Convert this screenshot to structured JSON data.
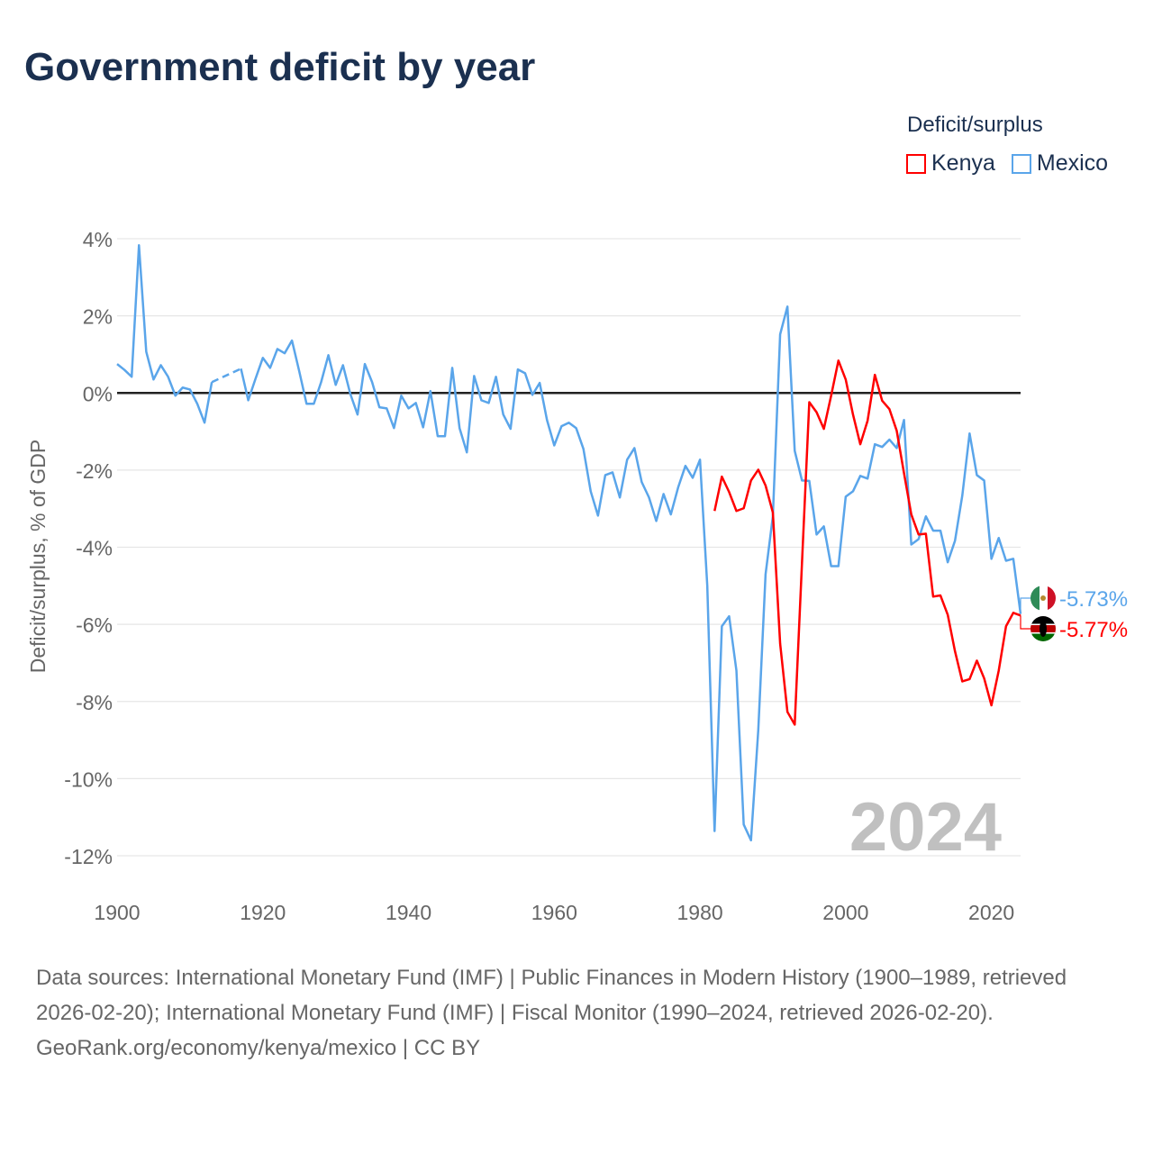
{
  "chart_data": {
    "type": "line",
    "title": "Government deficit by year",
    "ylabel": "Deficit/surplus, % of GDP",
    "xlabel": "",
    "xlim": [
      1900,
      2024
    ],
    "ylim": [
      -12,
      4
    ],
    "x_ticks": [
      "1900",
      "1920",
      "1940",
      "1960",
      "1980",
      "2000",
      "2020"
    ],
    "y_ticks": [
      "4%",
      "2%",
      "0%",
      "-2%",
      "-4%",
      "-6%",
      "-8%",
      "-10%",
      "-12%"
    ],
    "grid": true,
    "legend_title": "Deficit/surplus",
    "legend_position": "top-right",
    "watermark_year": "2024",
    "series": [
      {
        "name": "Kenya",
        "color": "#ff0000",
        "start_year": 1982,
        "end_label": "-5.77%",
        "values": [
          -3.06,
          -2.17,
          -2.57,
          -3.06,
          -2.99,
          -2.27,
          -1.99,
          -2.4,
          -3.1,
          -6.5,
          -8.27,
          -8.6,
          -4.4,
          -0.24,
          -0.5,
          -0.93,
          -0.07,
          0.84,
          0.35,
          -0.56,
          -1.33,
          -0.72,
          0.47,
          -0.2,
          -0.42,
          -0.98,
          -2.08,
          -3.15,
          -3.67,
          -3.65,
          -5.28,
          -5.25,
          -5.75,
          -6.7,
          -7.48,
          -7.42,
          -6.94,
          -7.4,
          -8.1,
          -7.2,
          -6.05,
          -5.7,
          -5.77
        ]
      },
      {
        "name": "Mexico",
        "color": "#5aa5ea",
        "start_year": 1900,
        "end_label": "-5.73%",
        "values": [
          0.75,
          0.6,
          0.42,
          3.83,
          1.07,
          0.35,
          0.72,
          0.42,
          -0.07,
          0.14,
          0.09,
          -0.28,
          -0.77,
          0.28,
          null,
          null,
          null,
          0.63,
          -0.19,
          0.37,
          0.91,
          0.65,
          1.14,
          1.03,
          1.36,
          0.56,
          -0.28,
          -0.28,
          0.28,
          0.98,
          0.21,
          0.72,
          -0.02,
          -0.56,
          0.75,
          0.28,
          -0.37,
          -0.4,
          -0.91,
          -0.07,
          -0.4,
          -0.26,
          -0.89,
          0.05,
          -1.12,
          -1.12,
          0.65,
          -0.91,
          -1.54,
          0.44,
          -0.19,
          -0.26,
          0.42,
          -0.56,
          -0.93,
          0.61,
          0.51,
          -0.05,
          0.26,
          -0.7,
          -1.36,
          -0.86,
          -0.77,
          -0.91,
          -1.45,
          -2.55,
          -3.18,
          -2.13,
          -2.06,
          -2.71,
          -1.73,
          -1.43,
          -2.31,
          -2.71,
          -3.32,
          -2.62,
          -3.15,
          -2.45,
          -1.89,
          -2.2,
          -1.73,
          -5.0,
          -11.36,
          -6.05,
          -5.79,
          -7.2,
          -11.19,
          -11.6,
          -8.74,
          -4.7,
          -3.2,
          1.52,
          2.24,
          -1.5,
          -2.27,
          -2.28,
          -3.67,
          -3.46,
          -4.49,
          -4.49,
          -2.69,
          -2.55,
          -2.15,
          -2.22,
          -1.33,
          -1.4,
          -1.21,
          -1.43,
          -0.7,
          -3.93,
          -3.79,
          -3.2,
          -3.57,
          -3.57,
          -4.39,
          -3.83,
          -2.66,
          -1.05,
          -2.13,
          -2.27,
          -4.3,
          -3.76,
          -4.35,
          -4.3,
          -5.73
        ]
      }
    ]
  },
  "footer": {
    "sources": "Data sources: International Monetary Fund (IMF) | Public Finances in Modern History (1900–1989, retrieved 2026-02-20); International Monetary Fund (IMF) | Fiscal Monitor (1990–2024, retrieved 2026-02-20).",
    "credit": "GeoRank.org/economy/kenya/mexico | CC BY"
  }
}
